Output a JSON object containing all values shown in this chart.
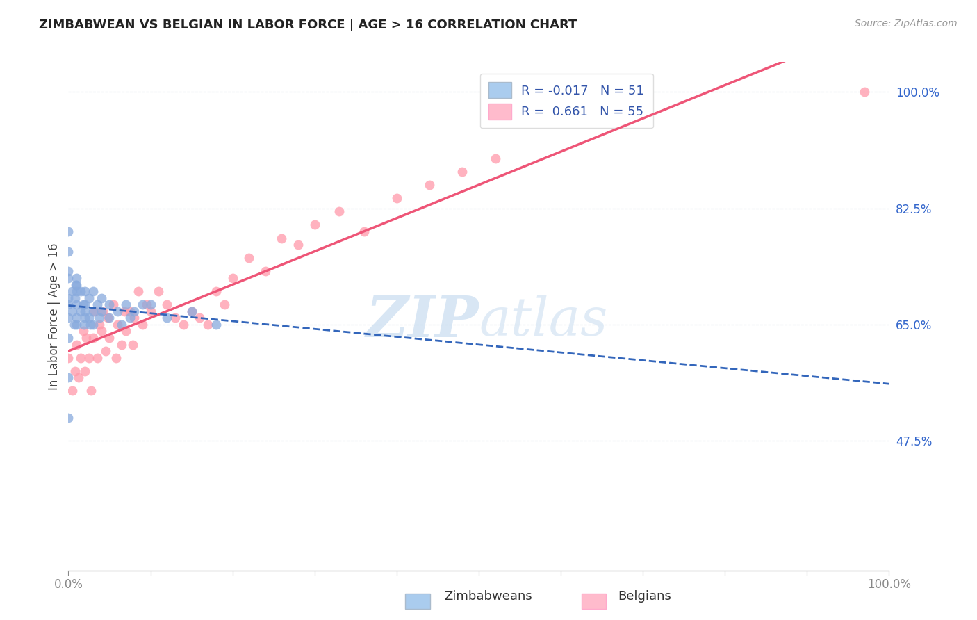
{
  "title": "ZIMBABWEAN VS BELGIAN IN LABOR FORCE | AGE > 16 CORRELATION CHART",
  "source": "Source: ZipAtlas.com",
  "ylabel": "In Labor Force | Age > 16",
  "xlim": [
    0.0,
    1.0
  ],
  "ylim": [
    0.28,
    1.045
  ],
  "ytick_vals": [
    0.475,
    0.65,
    0.825,
    1.0
  ],
  "ytick_labels": [
    "47.5%",
    "65.0%",
    "82.5%",
    "100.0%"
  ],
  "xtick_vals": [
    0.0,
    0.1,
    0.2,
    0.3,
    0.4,
    0.5,
    0.6,
    0.7,
    0.8,
    0.9,
    1.0
  ],
  "xtick_labels": [
    "0.0%",
    "",
    "",
    "",
    "",
    "",
    "",
    "",
    "",
    "",
    "100.0%"
  ],
  "zim_R": -0.017,
  "zim_N": 51,
  "bel_R": 0.661,
  "bel_N": 55,
  "blue_dot_color": "#88AADD",
  "pink_dot_color": "#FF99AA",
  "blue_line_color": "#3366BB",
  "pink_line_color": "#EE5577",
  "blue_legend_color": "#AACCEE",
  "pink_legend_color": "#FFBBCC",
  "watermark_color": "#C8DCF0",
  "grid_color": "#AABBCC",
  "title_color": "#222222",
  "axis_label_color": "#3366CC",
  "tick_label_color": "#3366CC",
  "legend_text_color": "#3355AA",
  "source_color": "#999999",
  "ylabel_color": "#444444",
  "zim_x": [
    0.0,
    0.0,
    0.0,
    0.0,
    0.0,
    0.0,
    0.0,
    0.0,
    0.0,
    0.0,
    0.005,
    0.005,
    0.007,
    0.008,
    0.009,
    0.01,
    0.01,
    0.01,
    0.01,
    0.01,
    0.01,
    0.015,
    0.015,
    0.018,
    0.019,
    0.02,
    0.02,
    0.02,
    0.02,
    0.025,
    0.025,
    0.027,
    0.03,
    0.03,
    0.03,
    0.035,
    0.038,
    0.04,
    0.04,
    0.05,
    0.05,
    0.06,
    0.065,
    0.07,
    0.075,
    0.08,
    0.09,
    0.1,
    0.12,
    0.15,
    0.18
  ],
  "zim_y": [
    0.69,
    0.66,
    0.72,
    0.76,
    0.79,
    0.68,
    0.73,
    0.63,
    0.57,
    0.51,
    0.7,
    0.67,
    0.65,
    0.69,
    0.71,
    0.7,
    0.66,
    0.68,
    0.71,
    0.65,
    0.72,
    0.67,
    0.7,
    0.68,
    0.65,
    0.67,
    0.66,
    0.68,
    0.7,
    0.66,
    0.69,
    0.65,
    0.67,
    0.7,
    0.65,
    0.68,
    0.66,
    0.67,
    0.69,
    0.68,
    0.66,
    0.67,
    0.65,
    0.68,
    0.66,
    0.67,
    0.68,
    0.68,
    0.66,
    0.67,
    0.65
  ],
  "bel_x": [
    0.0,
    0.005,
    0.008,
    0.01,
    0.012,
    0.015,
    0.018,
    0.02,
    0.022,
    0.025,
    0.028,
    0.03,
    0.032,
    0.035,
    0.038,
    0.04,
    0.042,
    0.045,
    0.048,
    0.05,
    0.055,
    0.058,
    0.06,
    0.065,
    0.068,
    0.07,
    0.075,
    0.078,
    0.08,
    0.085,
    0.09,
    0.095,
    0.1,
    0.11,
    0.12,
    0.13,
    0.14,
    0.15,
    0.16,
    0.17,
    0.18,
    0.19,
    0.2,
    0.22,
    0.24,
    0.26,
    0.28,
    0.3,
    0.33,
    0.36,
    0.4,
    0.44,
    0.48,
    0.52,
    0.97
  ],
  "bel_y": [
    0.6,
    0.55,
    0.58,
    0.62,
    0.57,
    0.6,
    0.64,
    0.58,
    0.63,
    0.6,
    0.55,
    0.63,
    0.67,
    0.6,
    0.65,
    0.64,
    0.67,
    0.61,
    0.66,
    0.63,
    0.68,
    0.6,
    0.65,
    0.62,
    0.67,
    0.64,
    0.67,
    0.62,
    0.66,
    0.7,
    0.65,
    0.68,
    0.67,
    0.7,
    0.68,
    0.66,
    0.65,
    0.67,
    0.66,
    0.65,
    0.7,
    0.68,
    0.72,
    0.75,
    0.73,
    0.78,
    0.77,
    0.8,
    0.82,
    0.79,
    0.84,
    0.86,
    0.88,
    0.9,
    1.0
  ]
}
